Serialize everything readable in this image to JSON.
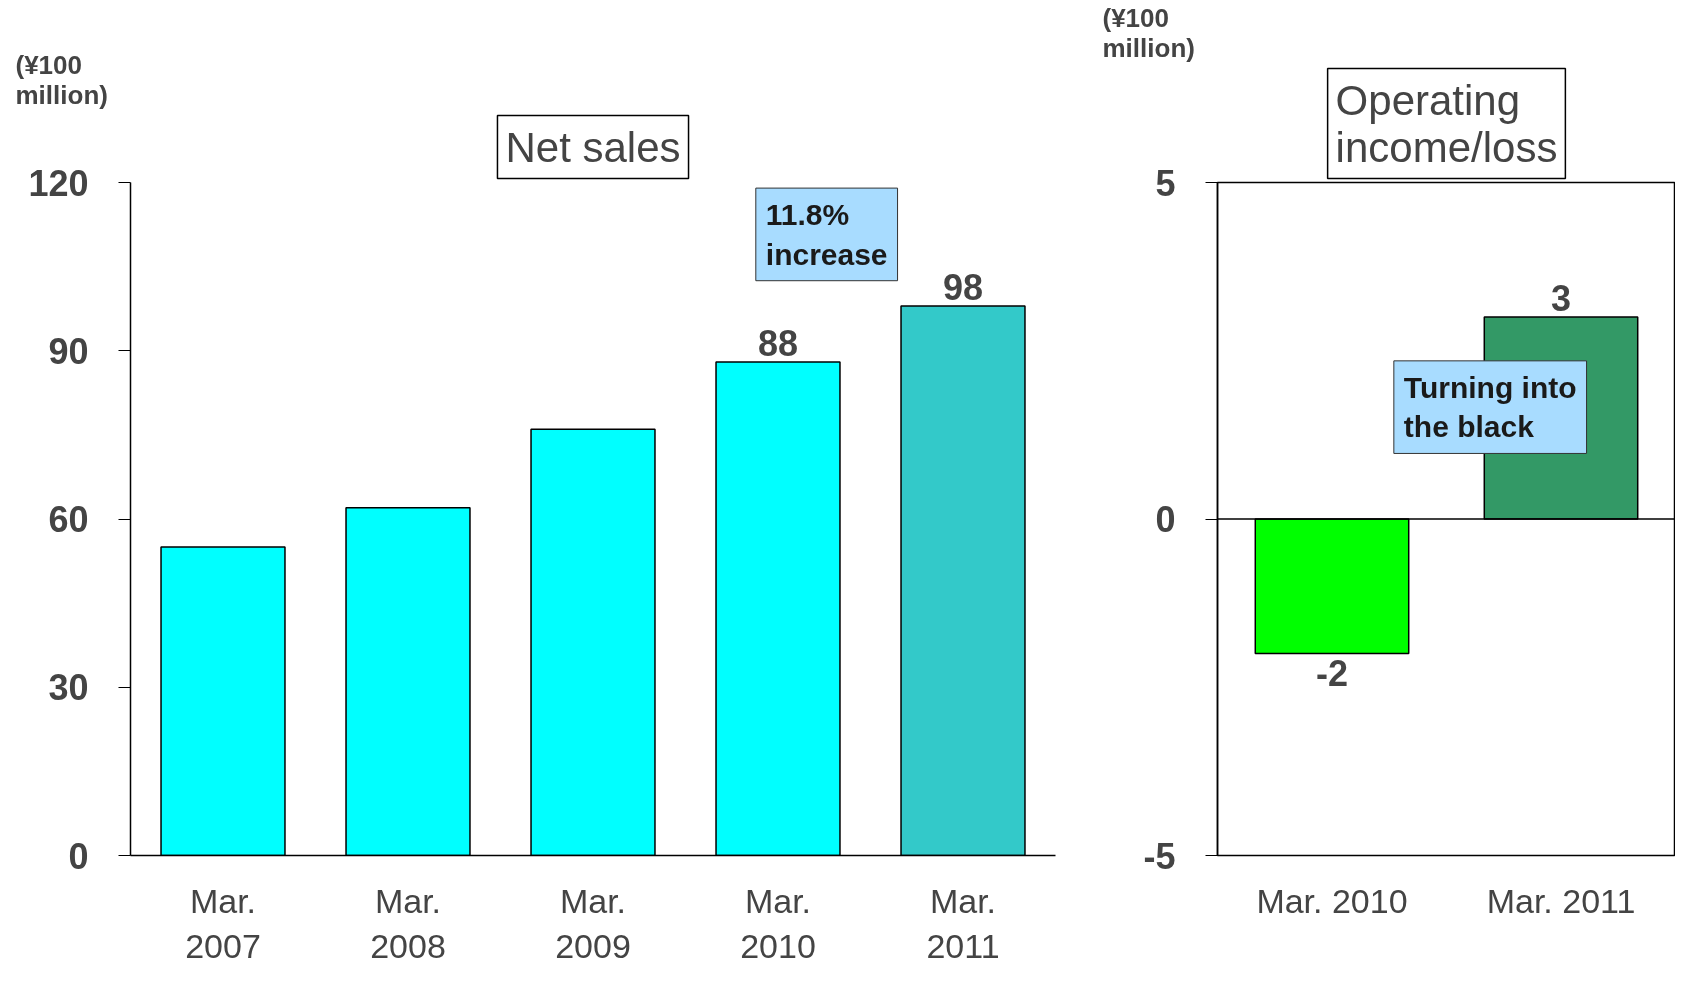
{
  "chart_data": [
    {
      "type": "bar",
      "title": "Net sales",
      "ylabel": "(¥100 million)",
      "categories": [
        "Mar. 2007",
        "Mar. 2008",
        "Mar. 2009",
        "Mar. 2010",
        "Mar. 2011"
      ],
      "values": [
        55,
        62,
        76,
        88,
        98
      ],
      "colors": [
        "#00ffff",
        "#00ffff",
        "#00ffff",
        "#00ffff",
        "#33c9c9"
      ],
      "value_labels": [
        null,
        null,
        null,
        "88",
        "98"
      ],
      "ylim": [
        0,
        120
      ],
      "yticks": [
        0,
        30,
        60,
        90,
        120
      ],
      "grid": false,
      "annotations": [
        "11.8% increase"
      ]
    },
    {
      "type": "bar",
      "title": "Operating income/loss",
      "ylabel": "(¥100 million)",
      "categories": [
        "Mar. 2010",
        "Mar. 2011"
      ],
      "values": [
        -2,
        3
      ],
      "colors": [
        "#00ff00",
        "#339966"
      ],
      "data_labels": true,
      "ylim": [
        -5,
        5
      ],
      "yticks": [
        -5,
        0,
        5
      ],
      "grid": false,
      "ref_lines": [
        {
          "axis": "y",
          "value": 0
        }
      ],
      "annotations": [
        "Turning into the black"
      ]
    }
  ]
}
